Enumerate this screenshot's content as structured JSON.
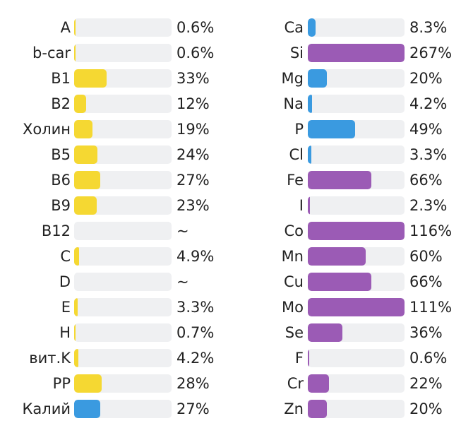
{
  "chart_data": [
    {
      "type": "bar",
      "orientation": "horizontal",
      "xlim": [
        0,
        100
      ],
      "categories": [
        "A",
        "b-car",
        "B1",
        "B2",
        "Холин",
        "B5",
        "B6",
        "B9",
        "B12",
        "C",
        "D",
        "E",
        "H",
        "вит.K",
        "PP",
        "Калий"
      ],
      "values": [
        0.6,
        0.6,
        33,
        12,
        19,
        24,
        27,
        23,
        null,
        4.9,
        null,
        3.3,
        0.7,
        4.2,
        28,
        27
      ],
      "value_labels": [
        "0.6%",
        "0.6%",
        "33%",
        "12%",
        "19%",
        "24%",
        "27%",
        "23%",
        "~",
        "4.9%",
        "~",
        "3.3%",
        "0.7%",
        "4.2%",
        "28%",
        "27%"
      ],
      "colors": [
        "#f5d832",
        "#f5d832",
        "#f5d832",
        "#f5d832",
        "#f5d832",
        "#f5d832",
        "#f5d832",
        "#f5d832",
        "#f5d832",
        "#f5d832",
        "#f5d832",
        "#f5d832",
        "#f5d832",
        "#f5d832",
        "#f5d832",
        "#3a9ae0"
      ]
    },
    {
      "type": "bar",
      "orientation": "horizontal",
      "xlim": [
        0,
        100
      ],
      "categories": [
        "Ca",
        "Si",
        "Mg",
        "Na",
        "P",
        "Cl",
        "Fe",
        "I",
        "Co",
        "Mn",
        "Cu",
        "Mo",
        "Se",
        "F",
        "Cr",
        "Zn"
      ],
      "values": [
        8.3,
        267,
        20,
        4.2,
        49,
        3.3,
        66,
        2.3,
        116,
        60,
        66,
        111,
        36,
        0.6,
        22,
        20
      ],
      "value_labels": [
        "8.3%",
        "267%",
        "20%",
        "4.2%",
        "49%",
        "3.3%",
        "66%",
        "2.3%",
        "116%",
        "60%",
        "66%",
        "111%",
        "36%",
        "0.6%",
        "22%",
        "20%"
      ],
      "colors": [
        "#3a9ae0",
        "#9b5bb5",
        "#3a9ae0",
        "#3a9ae0",
        "#3a9ae0",
        "#3a9ae0",
        "#9b5bb5",
        "#9b5bb5",
        "#9b5bb5",
        "#9b5bb5",
        "#9b5bb5",
        "#9b5bb5",
        "#9b5bb5",
        "#9b5bb5",
        "#9b5bb5",
        "#9b5bb5"
      ]
    }
  ]
}
